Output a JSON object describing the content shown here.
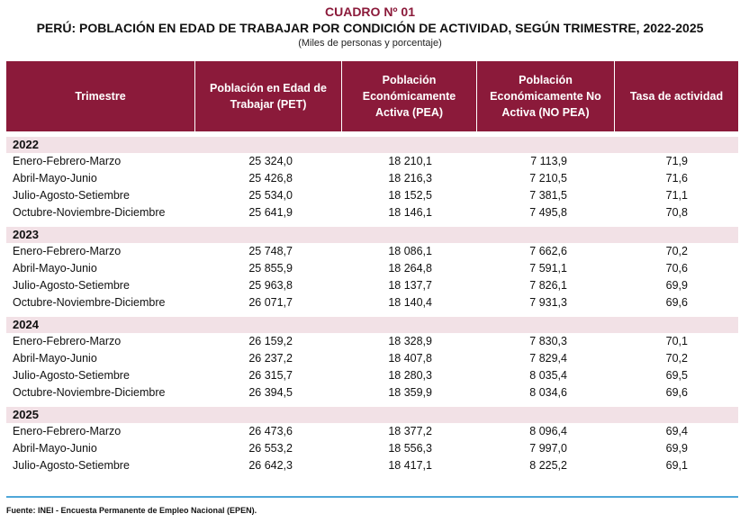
{
  "cuadro": "CUADRO Nº 01",
  "title": "PERÚ: POBLACIÓN EN EDAD DE TRABAJAR POR CONDICIÓN DE ACTIVIDAD, SEGÚN TRIMESTRE, 2022-2025",
  "subtitle": "(Miles de personas y porcentaje)",
  "colors": {
    "header_bg": "#8b1a3a",
    "year_bg": "#f2e1e6",
    "rule": "#4fa7d8"
  },
  "headers": [
    "Trimestre",
    "Población en Edad de Trabajar (PET)",
    "Población Económicamente Activa (PEA)",
    "Población Económicamente No Activa (NO PEA)",
    "Tasa de actividad"
  ],
  "groups": [
    {
      "year": "2022",
      "rows": [
        {
          "label": "Enero-Febrero-Marzo",
          "pet": "25 324,0",
          "pea": "18 210,1",
          "nopea": "7 113,9",
          "tasa": "71,9"
        },
        {
          "label": "Abril-Mayo-Junio",
          "pet": "25 426,8",
          "pea": "18 216,3",
          "nopea": "7 210,5",
          "tasa": "71,6"
        },
        {
          "label": "Julio-Agosto-Setiembre",
          "pet": "25 534,0",
          "pea": "18 152,5",
          "nopea": "7 381,5",
          "tasa": "71,1"
        },
        {
          "label": "Octubre-Noviembre-Diciembre",
          "pet": "25 641,9",
          "pea": "18 146,1",
          "nopea": "7 495,8",
          "tasa": "70,8"
        }
      ]
    },
    {
      "year": "2023",
      "rows": [
        {
          "label": "Enero-Febrero-Marzo",
          "pet": "25 748,7",
          "pea": "18 086,1",
          "nopea": "7 662,6",
          "tasa": "70,2"
        },
        {
          "label": "Abril-Mayo-Junio",
          "pet": "25 855,9",
          "pea": "18 264,8",
          "nopea": "7 591,1",
          "tasa": "70,6"
        },
        {
          "label": "Julio-Agosto-Setiembre",
          "pet": "25 963,8",
          "pea": "18 137,7",
          "nopea": "7 826,1",
          "tasa": "69,9"
        },
        {
          "label": "Octubre-Noviembre-Diciembre",
          "pet": "26 071,7",
          "pea": "18 140,4",
          "nopea": "7 931,3",
          "tasa": "69,6"
        }
      ]
    },
    {
      "year": "2024",
      "rows": [
        {
          "label": "Enero-Febrero-Marzo",
          "pet": "26 159,2",
          "pea": "18 328,9",
          "nopea": "7 830,3",
          "tasa": "70,1"
        },
        {
          "label": "Abril-Mayo-Junio",
          "pet": "26 237,2",
          "pea": "18 407,8",
          "nopea": "7 829,4",
          "tasa": "70,2"
        },
        {
          "label": "Julio-Agosto-Setiembre",
          "pet": "26 315,7",
          "pea": "18 280,3",
          "nopea": "8 035,4",
          "tasa": "69,5"
        },
        {
          "label": "Octubre-Noviembre-Diciembre",
          "pet": "26 394,5",
          "pea": "18 359,9",
          "nopea": "8 034,6",
          "tasa": "69,6"
        }
      ]
    },
    {
      "year": "2025",
      "rows": [
        {
          "label": "Enero-Febrero-Marzo",
          "pet": "26 473,6",
          "pea": "18 377,2",
          "nopea": "8 096,4",
          "tasa": "69,4"
        },
        {
          "label": "Abril-Mayo-Junio",
          "pet": "26 553,2",
          "pea": "18 556,3",
          "nopea": "7 997,0",
          "tasa": "69,9"
        },
        {
          "label": "Julio-Agosto-Setiembre",
          "pet": "26 642,3",
          "pea": "18 417,1",
          "nopea": "8 225,2",
          "tasa": "69,1"
        }
      ]
    }
  ],
  "source": "Fuente: INEI - Encuesta Permanente de Empleo Nacional (EPEN)."
}
